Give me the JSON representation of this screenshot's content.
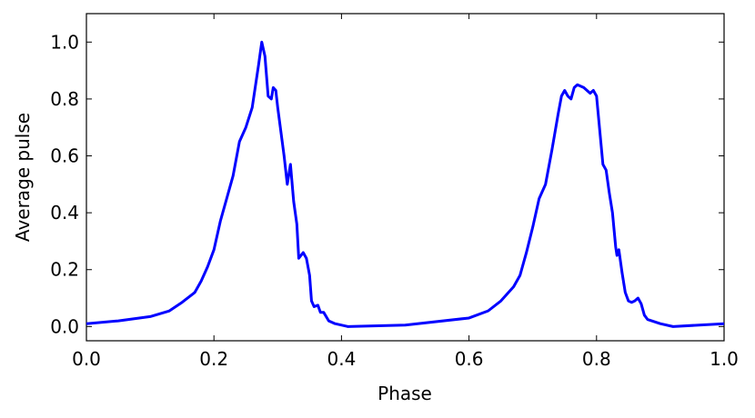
{
  "chart_data": {
    "type": "line",
    "xlabel": "Phase",
    "ylabel": "Average pulse",
    "x": [
      0.0,
      0.05,
      0.1,
      0.13,
      0.15,
      0.17,
      0.18,
      0.19,
      0.2,
      0.21,
      0.22,
      0.23,
      0.24,
      0.25,
      0.26,
      0.27,
      0.275,
      0.28,
      0.285,
      0.29,
      0.293,
      0.297,
      0.3,
      0.31,
      0.315,
      0.32,
      0.325,
      0.33,
      0.333,
      0.34,
      0.345,
      0.35,
      0.353,
      0.357,
      0.363,
      0.367,
      0.372,
      0.38,
      0.39,
      0.41,
      0.5,
      0.6,
      0.63,
      0.65,
      0.67,
      0.68,
      0.69,
      0.7,
      0.71,
      0.72,
      0.73,
      0.74,
      0.745,
      0.75,
      0.755,
      0.76,
      0.765,
      0.77,
      0.78,
      0.79,
      0.795,
      0.8,
      0.805,
      0.81,
      0.815,
      0.82,
      0.825,
      0.83,
      0.832,
      0.835,
      0.84,
      0.845,
      0.85,
      0.855,
      0.86,
      0.865,
      0.87,
      0.875,
      0.88,
      0.9,
      0.92,
      1.0
    ],
    "series": [
      {
        "color": "#0000ff",
        "values": [
          0.01,
          0.02,
          0.035,
          0.055,
          0.085,
          0.12,
          0.16,
          0.21,
          0.27,
          0.37,
          0.45,
          0.53,
          0.65,
          0.7,
          0.77,
          0.92,
          1.0,
          0.95,
          0.81,
          0.8,
          0.84,
          0.83,
          0.77,
          0.6,
          0.5,
          0.57,
          0.44,
          0.36,
          0.24,
          0.26,
          0.24,
          0.18,
          0.09,
          0.07,
          0.075,
          0.05,
          0.05,
          0.02,
          0.01,
          0.0,
          0.005,
          0.03,
          0.055,
          0.09,
          0.14,
          0.18,
          0.26,
          0.35,
          0.45,
          0.5,
          0.62,
          0.75,
          0.81,
          0.83,
          0.81,
          0.8,
          0.84,
          0.85,
          0.84,
          0.82,
          0.83,
          0.81,
          0.69,
          0.57,
          0.55,
          0.47,
          0.4,
          0.28,
          0.25,
          0.27,
          0.19,
          0.12,
          0.09,
          0.085,
          0.09,
          0.1,
          0.08,
          0.04,
          0.025,
          0.01,
          0.0,
          0.01
        ]
      }
    ],
    "xlim": [
      0,
      1
    ],
    "xticks": [
      {
        "value": 0,
        "label": "0.0"
      },
      {
        "value": 0.2,
        "label": "0.2"
      },
      {
        "value": 0.4,
        "label": "0.4"
      },
      {
        "value": 0.6,
        "label": "0.6"
      },
      {
        "value": 0.8,
        "label": "0.8"
      },
      {
        "value": 1,
        "label": "1.0"
      }
    ],
    "ylim": [
      -0.05,
      1.1
    ],
    "yticks": [
      {
        "value": 0,
        "label": "0.0"
      },
      {
        "value": 0.2,
        "label": "0.2"
      },
      {
        "value": 0.4,
        "label": "0.4"
      },
      {
        "value": 0.6,
        "label": "0.6"
      },
      {
        "value": 0.8,
        "label": "0.8"
      },
      {
        "value": 1,
        "label": "1.0"
      }
    ]
  }
}
